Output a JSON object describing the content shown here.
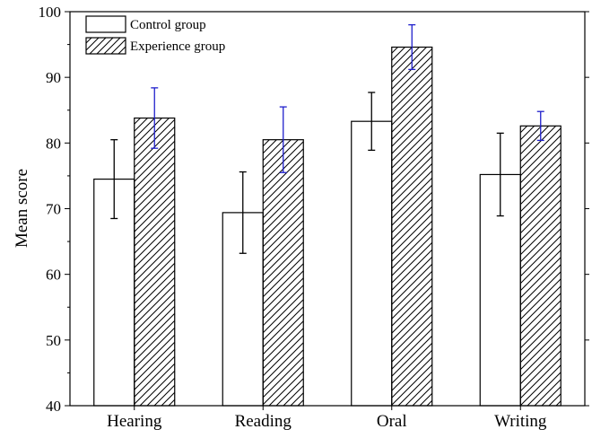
{
  "chart_data": {
    "type": "bar",
    "title": "",
    "xlabel": "",
    "ylabel": "Mean score",
    "ylim": [
      40,
      100
    ],
    "yticks": [
      40,
      50,
      60,
      70,
      80,
      90,
      100
    ],
    "categories": [
      "Hearing",
      "Reading",
      "Oral",
      "Writing"
    ],
    "legend_position": "top-left",
    "grid": false,
    "series": [
      {
        "name": "Control group",
        "values": [
          74.5,
          69.4,
          83.3,
          75.2
        ],
        "errors": [
          6.0,
          6.2,
          4.4,
          6.3
        ],
        "fill": "white",
        "error_color": "#000000"
      },
      {
        "name": "Experience group",
        "values": [
          83.8,
          80.5,
          94.6,
          82.6
        ],
        "errors": [
          4.6,
          5.0,
          3.4,
          2.2
        ],
        "fill": "hatched",
        "error_color": "#1f1fcc"
      }
    ]
  }
}
